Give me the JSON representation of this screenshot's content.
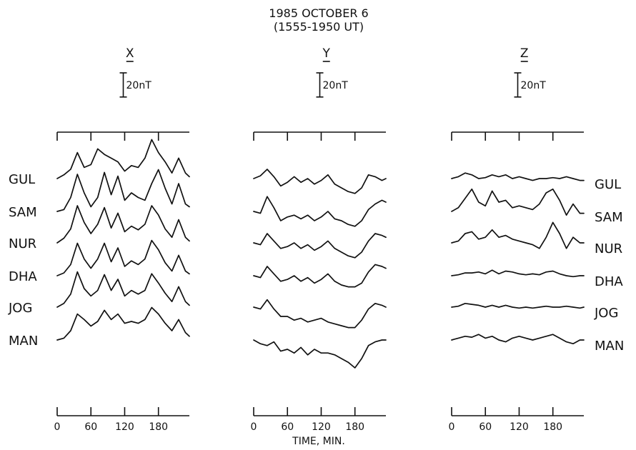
{
  "title_line1": "1985 OCTOBER 6",
  "title_line2": "(1555-1950 UT)",
  "xlabel": "TIME, MIN.",
  "scale_label": "20nT",
  "chart_data": [
    {
      "type": "line",
      "component": "X",
      "x_ticks": [
        0,
        60,
        120,
        180
      ],
      "xlim": [
        0,
        235
      ],
      "series": [
        {
          "name": "GUL",
          "x": [
            0,
            12,
            24,
            36,
            48,
            60,
            72,
            84,
            96,
            108,
            120,
            132,
            144,
            156,
            168,
            180,
            192,
            204,
            216,
            228,
            235
          ],
          "y": [
            0,
            4,
            10,
            28,
            12,
            15,
            32,
            26,
            22,
            18,
            8,
            14,
            12,
            22,
            42,
            28,
            18,
            6,
            22,
            6,
            2
          ]
        },
        {
          "name": "SAM",
          "x": [
            0,
            12,
            24,
            36,
            48,
            60,
            72,
            84,
            96,
            108,
            120,
            132,
            144,
            156,
            168,
            180,
            192,
            204,
            216,
            228,
            235
          ],
          "y": [
            0,
            2,
            15,
            40,
            20,
            5,
            15,
            42,
            18,
            38,
            12,
            20,
            15,
            12,
            30,
            45,
            25,
            8,
            30,
            8,
            5
          ]
        },
        {
          "name": "NUR",
          "x": [
            0,
            12,
            24,
            36,
            48,
            60,
            72,
            84,
            96,
            108,
            120,
            132,
            144,
            156,
            168,
            180,
            192,
            204,
            216,
            228,
            235
          ],
          "y": [
            0,
            5,
            15,
            40,
            22,
            10,
            20,
            38,
            16,
            32,
            12,
            18,
            14,
            20,
            40,
            30,
            15,
            6,
            25,
            6,
            2
          ]
        },
        {
          "name": "DHA",
          "x": [
            0,
            12,
            24,
            36,
            48,
            60,
            72,
            84,
            96,
            108,
            120,
            132,
            144,
            156,
            168,
            180,
            192,
            204,
            216,
            228,
            235
          ],
          "y": [
            0,
            3,
            12,
            35,
            18,
            8,
            18,
            35,
            15,
            30,
            10,
            16,
            12,
            18,
            38,
            28,
            14,
            5,
            22,
            5,
            2
          ]
        },
        {
          "name": "JOG",
          "x": [
            0,
            12,
            24,
            36,
            48,
            60,
            72,
            84,
            96,
            108,
            120,
            132,
            144,
            156,
            168,
            180,
            192,
            204,
            216,
            228,
            235
          ],
          "y": [
            0,
            4,
            14,
            38,
            20,
            12,
            18,
            35,
            18,
            30,
            12,
            18,
            14,
            18,
            36,
            26,
            15,
            6,
            22,
            6,
            2
          ]
        },
        {
          "name": "MAN",
          "x": [
            0,
            12,
            24,
            36,
            48,
            60,
            72,
            84,
            96,
            108,
            120,
            132,
            144,
            156,
            168,
            180,
            192,
            204,
            216,
            228,
            235
          ],
          "y": [
            0,
            2,
            10,
            28,
            22,
            15,
            20,
            32,
            22,
            28,
            18,
            20,
            18,
            22,
            35,
            28,
            18,
            10,
            22,
            8,
            4
          ]
        }
      ]
    },
    {
      "type": "line",
      "component": "Y",
      "x_ticks": [
        0,
        60,
        120,
        180
      ],
      "xlim": [
        0,
        235
      ],
      "series": [
        {
          "name": "GUL",
          "x": [
            0,
            12,
            24,
            36,
            48,
            60,
            72,
            84,
            96,
            108,
            120,
            132,
            144,
            156,
            168,
            180,
            192,
            204,
            216,
            228,
            235
          ],
          "y": [
            0,
            3,
            10,
            2,
            -8,
            -4,
            2,
            -4,
            0,
            -6,
            -2,
            4,
            -6,
            -10,
            -14,
            -16,
            -10,
            4,
            2,
            -2,
            0
          ]
        },
        {
          "name": "SAM",
          "x": [
            0,
            12,
            24,
            36,
            48,
            60,
            72,
            84,
            96,
            108,
            120,
            132,
            144,
            156,
            168,
            180,
            192,
            204,
            216,
            228,
            235
          ],
          "y": [
            0,
            -2,
            16,
            4,
            -10,
            -6,
            -4,
            -8,
            -4,
            -10,
            -6,
            0,
            -8,
            -10,
            -14,
            -16,
            -10,
            2,
            8,
            12,
            10
          ]
        },
        {
          "name": "NUR",
          "x": [
            0,
            12,
            24,
            36,
            48,
            60,
            72,
            84,
            96,
            108,
            120,
            132,
            144,
            156,
            168,
            180,
            192,
            204,
            216,
            228,
            235
          ],
          "y": [
            0,
            -2,
            10,
            2,
            -6,
            -4,
            0,
            -6,
            -2,
            -8,
            -4,
            2,
            -6,
            -10,
            -14,
            -16,
            -10,
            2,
            10,
            8,
            6
          ]
        },
        {
          "name": "DHA",
          "x": [
            0,
            12,
            24,
            36,
            48,
            60,
            72,
            84,
            96,
            108,
            120,
            132,
            144,
            156,
            168,
            180,
            192,
            204,
            216,
            228,
            235
          ],
          "y": [
            0,
            -2,
            10,
            2,
            -6,
            -4,
            0,
            -6,
            -2,
            -8,
            -4,
            2,
            -6,
            -10,
            -12,
            -12,
            -8,
            4,
            12,
            10,
            8
          ]
        },
        {
          "name": "JOG",
          "x": [
            0,
            12,
            24,
            36,
            48,
            60,
            72,
            84,
            96,
            108,
            120,
            132,
            144,
            156,
            168,
            180,
            192,
            204,
            216,
            228,
            235
          ],
          "y": [
            0,
            -2,
            8,
            -2,
            -10,
            -10,
            -14,
            -12,
            -16,
            -14,
            -12,
            -16,
            -18,
            -20,
            -22,
            -22,
            -14,
            -2,
            4,
            2,
            0
          ]
        },
        {
          "name": "MAN",
          "x": [
            0,
            12,
            24,
            36,
            48,
            60,
            72,
            84,
            96,
            108,
            120,
            132,
            144,
            156,
            168,
            180,
            192,
            204,
            216,
            228,
            235
          ],
          "y": [
            0,
            -4,
            -6,
            -2,
            -12,
            -10,
            -14,
            -8,
            -16,
            -10,
            -14,
            -14,
            -16,
            -20,
            -24,
            -30,
            -20,
            -6,
            -2,
            0,
            0
          ]
        }
      ]
    },
    {
      "type": "line",
      "component": "Z",
      "x_ticks": [
        0,
        60,
        120,
        180
      ],
      "xlim": [
        0,
        235
      ],
      "series": [
        {
          "name": "GUL",
          "x": [
            0,
            12,
            24,
            36,
            48,
            60,
            72,
            84,
            96,
            108,
            120,
            132,
            144,
            156,
            168,
            180,
            192,
            204,
            216,
            228,
            235
          ],
          "y": [
            0,
            2,
            6,
            4,
            0,
            1,
            4,
            2,
            4,
            0,
            2,
            0,
            -2,
            0,
            0,
            1,
            0,
            2,
            0,
            -2,
            -2
          ]
        },
        {
          "name": "SAM",
          "x": [
            0,
            12,
            24,
            36,
            48,
            60,
            72,
            84,
            96,
            108,
            120,
            132,
            144,
            156,
            168,
            180,
            192,
            204,
            216,
            228,
            235
          ],
          "y": [
            0,
            4,
            14,
            24,
            10,
            6,
            22,
            10,
            12,
            4,
            6,
            4,
            2,
            8,
            20,
            24,
            12,
            -4,
            8,
            -2,
            -2
          ]
        },
        {
          "name": "NUR",
          "x": [
            0,
            12,
            24,
            36,
            48,
            60,
            72,
            84,
            96,
            108,
            120,
            132,
            144,
            156,
            168,
            180,
            192,
            204,
            216,
            228,
            235
          ],
          "y": [
            0,
            2,
            10,
            12,
            4,
            6,
            14,
            6,
            8,
            4,
            2,
            0,
            -2,
            -6,
            6,
            22,
            10,
            -6,
            6,
            0,
            0
          ]
        },
        {
          "name": "DHA",
          "x": [
            0,
            12,
            24,
            36,
            48,
            60,
            72,
            84,
            96,
            108,
            120,
            132,
            144,
            156,
            168,
            180,
            192,
            204,
            216,
            228,
            235
          ],
          "y": [
            0,
            1,
            3,
            3,
            4,
            2,
            6,
            2,
            5,
            4,
            2,
            1,
            2,
            1,
            4,
            5,
            2,
            0,
            -1,
            0,
            0
          ]
        },
        {
          "name": "JOG",
          "x": [
            0,
            12,
            24,
            36,
            48,
            60,
            72,
            84,
            96,
            108,
            120,
            132,
            144,
            156,
            168,
            180,
            192,
            204,
            216,
            228,
            235
          ],
          "y": [
            0,
            1,
            4,
            3,
            2,
            0,
            2,
            0,
            2,
            0,
            -1,
            0,
            -1,
            0,
            1,
            0,
            0,
            1,
            0,
            -1,
            0
          ]
        },
        {
          "name": "MAN",
          "x": [
            0,
            12,
            24,
            36,
            48,
            60,
            72,
            84,
            96,
            108,
            120,
            132,
            144,
            156,
            168,
            180,
            192,
            204,
            216,
            228,
            235
          ],
          "y": [
            0,
            2,
            4,
            3,
            6,
            2,
            4,
            0,
            -2,
            2,
            4,
            2,
            0,
            2,
            4,
            6,
            2,
            -2,
            -4,
            0,
            0
          ]
        }
      ]
    }
  ]
}
